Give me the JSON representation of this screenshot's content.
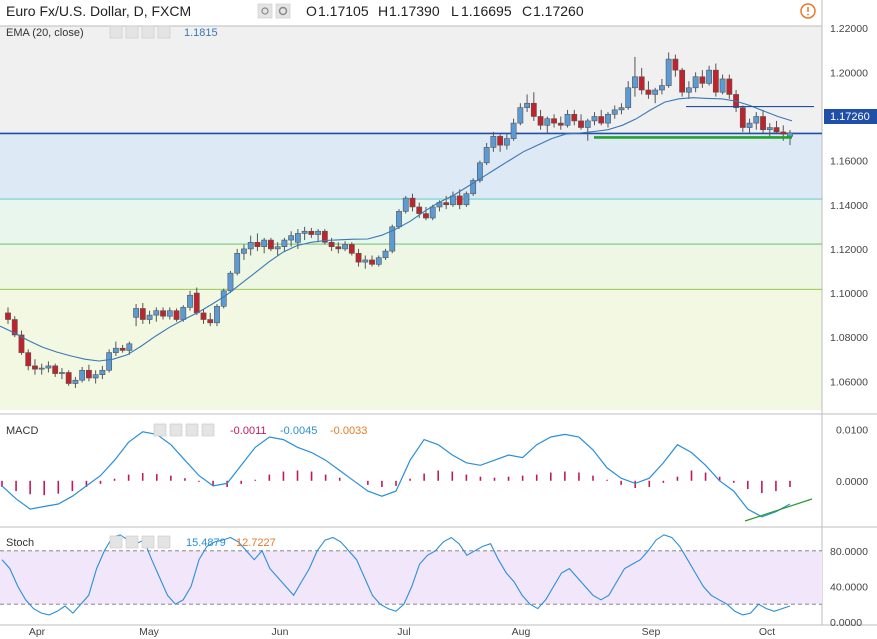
{
  "header": {
    "symbol_title": "Euro Fx/U.S. Dollar, D, FXCM",
    "ohlc": {
      "open_label": "O",
      "open": "1.17105",
      "high_label": "H",
      "high": "1.17390",
      "low_label": "L",
      "low": "1.16695",
      "close_label": "C",
      "close": "1.17260"
    },
    "ema_label": "EMA (20, close)",
    "ema_value": "1.1815"
  },
  "macd_header": {
    "label": "MACD",
    "v1": "-0.0011",
    "v2": "-0.0045",
    "v3": "-0.0033"
  },
  "stoch_header": {
    "label": "Stoch",
    "v1": "15.4879",
    "v2": "12.7227"
  },
  "price_badge": "1.17260",
  "icons": [
    "eye-icon",
    "gear-icon",
    "plus-icon",
    "close-icon",
    "alert-icon"
  ],
  "colors": {
    "up_candle": "#5b9bd5",
    "down_candle": "#c0232c",
    "ema_line": "#3a78b5",
    "price_line": "#1f4fa8",
    "support_line": "#22a32a",
    "macd_line": "#2a8fd8",
    "macd_hist": "#c2185b",
    "macd_signal_value": "#e8782a",
    "stoch_line": "#2a8fd8",
    "stoch_band": "#f2e6fa",
    "trend_line": "#2b9a2b"
  },
  "chart_data": {
    "type": "candlestick",
    "x_ticks": [
      "Apr",
      "May",
      "Jun",
      "Jul",
      "Aug",
      "Sep",
      "Oct"
    ],
    "price_ticks": [
      "1.06000",
      "1.08000",
      "1.10000",
      "1.12000",
      "1.14000",
      "1.16000",
      "1.18000",
      "1.20000",
      "1.22000"
    ],
    "price_range": [
      1.047,
      1.221
    ],
    "last_price": 1.1726,
    "fib_levels": [
      1.1723,
      1.1426,
      1.1222,
      1.1017
    ],
    "resistance_level": 1.1845,
    "support_level": 1.1705,
    "ema_value": 1.1815,
    "candles_ohlc": [
      [
        1.091,
        1.0935,
        1.086,
        1.088
      ],
      [
        1.088,
        1.0895,
        1.08,
        1.081
      ],
      [
        1.081,
        1.083,
        1.072,
        1.073
      ],
      [
        1.073,
        1.0745,
        1.065,
        1.067
      ],
      [
        1.067,
        1.07,
        1.063,
        1.0655
      ],
      [
        1.0655,
        1.068,
        1.063,
        1.066
      ],
      [
        1.066,
        1.069,
        1.064,
        1.067
      ],
      [
        1.067,
        1.068,
        1.062,
        1.0635
      ],
      [
        1.0635,
        1.066,
        1.061,
        1.064
      ],
      [
        1.064,
        1.065,
        1.058,
        1.059
      ],
      [
        1.059,
        1.062,
        1.057,
        1.0605
      ],
      [
        1.0605,
        1.0665,
        1.0595,
        1.065
      ],
      [
        1.065,
        1.0675,
        1.06,
        1.0615
      ],
      [
        1.0615,
        1.065,
        1.059,
        1.063
      ],
      [
        1.063,
        1.067,
        1.061,
        1.065
      ],
      [
        1.065,
        1.0745,
        1.064,
        1.073
      ],
      [
        1.073,
        1.078,
        1.0715,
        1.075
      ],
      [
        1.075,
        1.0765,
        1.073,
        1.074
      ],
      [
        1.074,
        1.078,
        1.072,
        1.077
      ],
      [
        1.089,
        1.095,
        1.085,
        1.093
      ],
      [
        1.093,
        1.0955,
        1.086,
        1.088
      ],
      [
        1.088,
        1.092,
        1.086,
        1.09
      ],
      [
        1.09,
        1.0935,
        1.087,
        1.092
      ],
      [
        1.092,
        1.0935,
        1.088,
        1.0895
      ],
      [
        1.0895,
        1.0935,
        1.088,
        1.092
      ],
      [
        1.092,
        1.093,
        1.087,
        1.088
      ],
      [
        1.088,
        1.0945,
        1.087,
        1.0935
      ],
      [
        1.0935,
        1.101,
        1.092,
        1.099
      ],
      [
        1.1,
        1.1025,
        1.09,
        1.091
      ],
      [
        1.091,
        1.0925,
        1.086,
        1.088
      ],
      [
        1.088,
        1.091,
        1.085,
        1.0865
      ],
      [
        1.0865,
        1.095,
        1.085,
        1.094
      ],
      [
        1.094,
        1.102,
        1.093,
        1.101
      ],
      [
        1.101,
        1.11,
        1.1,
        1.109
      ],
      [
        1.109,
        1.12,
        1.108,
        1.118
      ],
      [
        1.118,
        1.122,
        1.115,
        1.12
      ],
      [
        1.12,
        1.126,
        1.117,
        1.123
      ],
      [
        1.123,
        1.127,
        1.119,
        1.121
      ],
      [
        1.121,
        1.125,
        1.118,
        1.124
      ],
      [
        1.124,
        1.125,
        1.119,
        1.12
      ],
      [
        1.12,
        1.123,
        1.117,
        1.121
      ],
      [
        1.121,
        1.125,
        1.119,
        1.124
      ],
      [
        1.124,
        1.128,
        1.121,
        1.126
      ],
      [
        1.123,
        1.129,
        1.12,
        1.127
      ],
      [
        1.127,
        1.13,
        1.124,
        1.128
      ],
      [
        1.128,
        1.1295,
        1.125,
        1.1265
      ],
      [
        1.1265,
        1.129,
        1.123,
        1.128
      ],
      [
        1.128,
        1.129,
        1.122,
        1.123
      ],
      [
        1.123,
        1.125,
        1.119,
        1.121
      ],
      [
        1.121,
        1.123,
        1.118,
        1.12
      ],
      [
        1.12,
        1.1235,
        1.119,
        1.122
      ],
      [
        1.122,
        1.123,
        1.117,
        1.118
      ],
      [
        1.118,
        1.12,
        1.112,
        1.114
      ],
      [
        1.114,
        1.117,
        1.111,
        1.115
      ],
      [
        1.115,
        1.117,
        1.112,
        1.113
      ],
      [
        1.113,
        1.117,
        1.112,
        1.116
      ],
      [
        1.116,
        1.12,
        1.115,
        1.119
      ],
      [
        1.119,
        1.131,
        1.118,
        1.13
      ],
      [
        1.13,
        1.138,
        1.129,
        1.137
      ],
      [
        1.137,
        1.144,
        1.136,
        1.143
      ],
      [
        1.143,
        1.145,
        1.137,
        1.139
      ],
      [
        1.139,
        1.141,
        1.134,
        1.136
      ],
      [
        1.136,
        1.139,
        1.133,
        1.134
      ],
      [
        1.134,
        1.14,
        1.133,
        1.139
      ],
      [
        1.139,
        1.142,
        1.137,
        1.141
      ],
      [
        1.141,
        1.144,
        1.138,
        1.14
      ],
      [
        1.14,
        1.146,
        1.139,
        1.144
      ],
      [
        1.144,
        1.147,
        1.138,
        1.14
      ],
      [
        1.14,
        1.146,
        1.139,
        1.145
      ],
      [
        1.145,
        1.152,
        1.144,
        1.151
      ],
      [
        1.151,
        1.16,
        1.15,
        1.159
      ],
      [
        1.159,
        1.168,
        1.158,
        1.166
      ],
      [
        1.166,
        1.173,
        1.164,
        1.171
      ],
      [
        1.171,
        1.172,
        1.164,
        1.167
      ],
      [
        1.167,
        1.172,
        1.165,
        1.17
      ],
      [
        1.17,
        1.179,
        1.169,
        1.177
      ],
      [
        1.177,
        1.186,
        1.176,
        1.184
      ],
      [
        1.184,
        1.19,
        1.182,
        1.186
      ],
      [
        1.186,
        1.191,
        1.178,
        1.18
      ],
      [
        1.18,
        1.183,
        1.174,
        1.176
      ],
      [
        1.176,
        1.18,
        1.172,
        1.179
      ],
      [
        1.179,
        1.181,
        1.175,
        1.177
      ],
      [
        1.177,
        1.18,
        1.174,
        1.176
      ],
      [
        1.176,
        1.183,
        1.175,
        1.181
      ],
      [
        1.181,
        1.183,
        1.176,
        1.178
      ],
      [
        1.178,
        1.181,
        1.174,
        1.175
      ],
      [
        1.175,
        1.179,
        1.169,
        1.178
      ],
      [
        1.178,
        1.182,
        1.176,
        1.18
      ],
      [
        1.18,
        1.183,
        1.176,
        1.177
      ],
      [
        1.177,
        1.182,
        1.175,
        1.181
      ],
      [
        1.181,
        1.185,
        1.179,
        1.183
      ],
      [
        1.183,
        1.186,
        1.181,
        1.184
      ],
      [
        1.184,
        1.196,
        1.183,
        1.193
      ],
      [
        1.193,
        1.207,
        1.189,
        1.198
      ],
      [
        1.198,
        1.202,
        1.19,
        1.192
      ],
      [
        1.192,
        1.196,
        1.188,
        1.19
      ],
      [
        1.19,
        1.193,
        1.186,
        1.192
      ],
      [
        1.192,
        1.197,
        1.19,
        1.194
      ],
      [
        1.194,
        1.209,
        1.193,
        1.206
      ],
      [
        1.206,
        1.208,
        1.198,
        1.201
      ],
      [
        1.201,
        1.202,
        1.189,
        1.191
      ],
      [
        1.191,
        1.196,
        1.188,
        1.193
      ],
      [
        1.193,
        1.2,
        1.191,
        1.198
      ],
      [
        1.198,
        1.201,
        1.193,
        1.195
      ],
      [
        1.195,
        1.203,
        1.194,
        1.201
      ],
      [
        1.201,
        1.204,
        1.189,
        1.191
      ],
      [
        1.191,
        1.199,
        1.19,
        1.197
      ],
      [
        1.197,
        1.199,
        1.188,
        1.19
      ],
      [
        1.19,
        1.192,
        1.182,
        1.184
      ],
      [
        1.184,
        1.185,
        1.173,
        1.175
      ],
      [
        1.175,
        1.179,
        1.172,
        1.177
      ],
      [
        1.177,
        1.182,
        1.174,
        1.18
      ],
      [
        1.18,
        1.183,
        1.172,
        1.174
      ],
      [
        1.174,
        1.177,
        1.171,
        1.175
      ],
      [
        1.175,
        1.178,
        1.172,
        1.173
      ],
      [
        1.173,
        1.176,
        1.169,
        1.172
      ],
      [
        1.171,
        1.1739,
        1.167,
        1.1726
      ]
    ],
    "ema_series": [
      1.085,
      1.082,
      1.0785,
      1.0755,
      1.0733,
      1.0715,
      1.07,
      1.0692,
      1.07,
      1.072,
      1.076,
      1.0805,
      1.0845,
      1.088,
      1.0912,
      1.095,
      1.099,
      1.104,
      1.109,
      1.114,
      1.1185,
      1.1215,
      1.123,
      1.1238,
      1.1241,
      1.1244,
      1.1245,
      1.1262,
      1.129,
      1.1325,
      1.137,
      1.141,
      1.144,
      1.148,
      1.152,
      1.156,
      1.16,
      1.164,
      1.167,
      1.17,
      1.172,
      1.1725,
      1.1732,
      1.174,
      1.176,
      1.179,
      1.183,
      1.1865,
      1.188,
      1.1885,
      1.1882,
      1.188,
      1.187,
      1.185,
      1.1825,
      1.18,
      1.178
    ],
    "macd_series": [
      -0.001,
      -0.0035,
      -0.0055,
      -0.005,
      -0.0045,
      -0.003,
      -0.001,
      0.001,
      0.004,
      0.0075,
      0.0095,
      0.009,
      0.007,
      0.004,
      0.001,
      -0.001,
      -0.0005,
      0.003,
      0.0065,
      0.0085,
      0.008,
      0.0065,
      0.0055,
      0.004,
      0.002,
      0.0,
      -0.002,
      -0.003,
      -0.002,
      0.004,
      0.008,
      0.007,
      0.005,
      0.0035,
      0.003,
      0.004,
      0.005,
      0.0045,
      0.007,
      0.0085,
      0.009,
      0.0085,
      0.006,
      0.0025,
      0.0005,
      -0.0005,
      0.0005,
      0.0035,
      0.007,
      0.0055,
      0.003,
      0.0,
      -0.002,
      -0.0055,
      -0.007,
      -0.006,
      -0.0045
    ],
    "macd_hist": [
      -0.0012,
      -0.002,
      -0.0026,
      -0.0028,
      -0.0025,
      -0.002,
      -0.0012,
      -0.0006,
      0.0004,
      0.0012,
      0.0015,
      0.0013,
      0.001,
      0.0005,
      -0.0002,
      -0.001,
      -0.0012,
      -0.0006,
      0.0002,
      0.0012,
      0.0018,
      0.002,
      0.0018,
      0.0012,
      0.0006,
      0.0,
      -0.0008,
      -0.0012,
      -0.001,
      0.0004,
      0.0014,
      0.002,
      0.0018,
      0.0012,
      0.0008,
      0.0006,
      0.0008,
      0.001,
      0.0012,
      0.0016,
      0.0018,
      0.0016,
      0.001,
      0.0002,
      -0.0008,
      -0.0014,
      -0.0012,
      -0.0004,
      0.0008,
      0.002,
      0.0016,
      0.0008,
      -0.0004,
      -0.0016,
      -0.0024,
      -0.002,
      -0.0012
    ],
    "macd_ticks": [
      "0.0100",
      "0.0000"
    ],
    "macd_range": [
      -0.008,
      0.0118
    ],
    "stoch_series": [
      70,
      60,
      40,
      25,
      15,
      10,
      8,
      12,
      18,
      10,
      20,
      30,
      60,
      80,
      95,
      98,
      92,
      88,
      92,
      70,
      50,
      30,
      20,
      25,
      40,
      70,
      85,
      90,
      92,
      95,
      90,
      80,
      70,
      80,
      60,
      50,
      40,
      30,
      45,
      60,
      80,
      92,
      95,
      90,
      80,
      70,
      50,
      30,
      20,
      15,
      12,
      20,
      40,
      65,
      75,
      80,
      90,
      95,
      88,
      75,
      80,
      85,
      88,
      70,
      55,
      45,
      30,
      20,
      15,
      25,
      40,
      55,
      60,
      50,
      40,
      30,
      25,
      30,
      45,
      60,
      65,
      70,
      80,
      92,
      98,
      95,
      85,
      70,
      55,
      40,
      30,
      25,
      20,
      12,
      8,
      10,
      20,
      15,
      12,
      15,
      18
    ],
    "stoch_ticks": [
      "80.0000",
      "40.0000",
      "0.0000"
    ],
    "stoch_range": [
      0,
      100
    ],
    "stoch_band": [
      20,
      80
    ]
  }
}
